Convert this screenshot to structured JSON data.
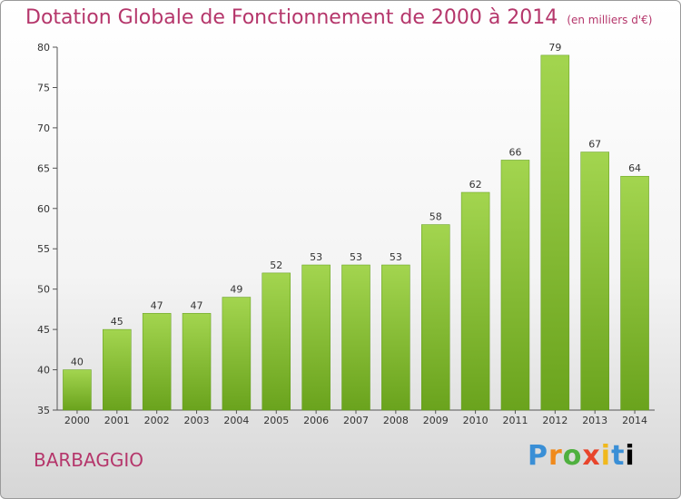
{
  "chart_data": {
    "type": "bar",
    "title": "Dotation Globale de Fonctionnement de 2000 à 2014",
    "subtitle": "(en milliers d'€)",
    "categories": [
      "2000",
      "2001",
      "2002",
      "2003",
      "2004",
      "2005",
      "2006",
      "2007",
      "2008",
      "2009",
      "2010",
      "2011",
      "2012",
      "2013",
      "2014"
    ],
    "values": [
      40,
      45,
      47,
      47,
      49,
      52,
      53,
      53,
      53,
      58,
      62,
      66,
      79,
      67,
      64
    ],
    "ylim": [
      35,
      80
    ],
    "yticks": [
      35,
      40,
      45,
      50,
      55,
      60,
      65,
      70,
      75,
      80
    ],
    "grid": false,
    "legend": "none",
    "bar_color": "#7dbb2c",
    "bar_color_light": "#a2d44e"
  },
  "commune": "BARBAGGIO",
  "brand": [
    "P",
    "r",
    "o",
    "x",
    "i",
    "t",
    "i"
  ],
  "colors": {
    "title": "#b5366b",
    "axis": "#555555"
  }
}
